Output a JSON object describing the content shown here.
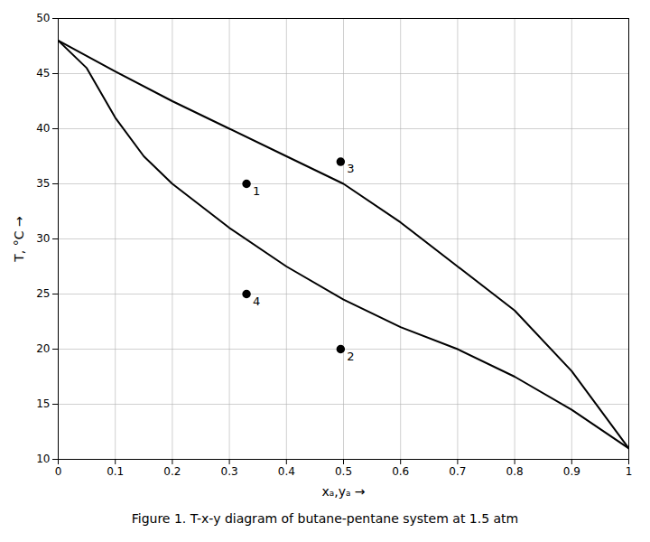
{
  "chart_data": {
    "type": "line",
    "title": "Figure 1. T-x-y diagram of butane-pentane system at 1.5 atm",
    "xlabel": "xₐ,yₐ",
    "ylabel": "T, °C",
    "xlim": [
      0,
      1
    ],
    "ylim": [
      10,
      50
    ],
    "xticks": [
      0,
      0.1,
      0.2,
      0.3,
      0.4,
      0.5,
      0.6,
      0.7,
      0.8,
      0.9,
      1
    ],
    "yticks": [
      10,
      15,
      20,
      25,
      30,
      35,
      40,
      45,
      50
    ],
    "grid": true,
    "series": [
      {
        "color": "#000000",
        "x": [
          0.0,
          0.1,
          0.2,
          0.3,
          0.4,
          0.5,
          0.6,
          0.7,
          0.8,
          0.9,
          1.0
        ],
        "values": [
          48.0,
          45.2,
          42.5,
          40.0,
          37.5,
          35.0,
          31.5,
          27.5,
          23.5,
          18.0,
          11.0
        ]
      },
      {
        "color": "#000000",
        "x": [
          0.0,
          0.05,
          0.1,
          0.15,
          0.2,
          0.3,
          0.4,
          0.5,
          0.6,
          0.7,
          0.8,
          0.9,
          1.0
        ],
        "values": [
          48.0,
          45.5,
          41.0,
          37.5,
          35.0,
          31.0,
          27.5,
          24.5,
          22.0,
          20.0,
          17.5,
          14.5,
          11.0
        ]
      }
    ],
    "points": {
      "type": "scatter",
      "marker": "o",
      "color": "#000000",
      "x": [
        0.33,
        0.495,
        0.495,
        0.33
      ],
      "values": [
        35.0,
        20.0,
        37.0,
        25.0
      ],
      "labels": [
        "1",
        "2",
        "3",
        "4"
      ]
    }
  }
}
